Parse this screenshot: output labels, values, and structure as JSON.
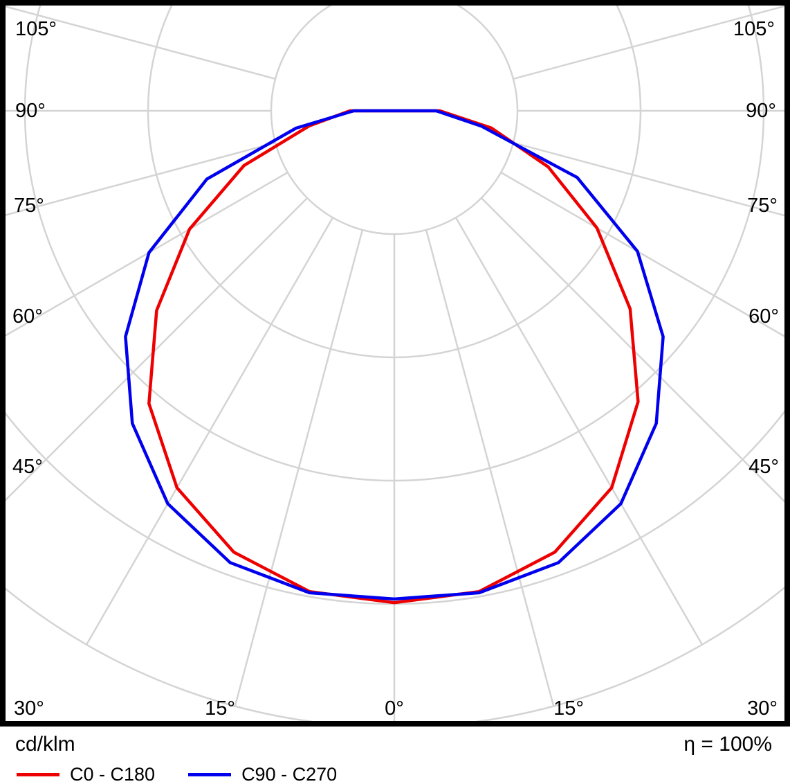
{
  "chart_data": {
    "type": "line",
    "coordinate_system": "polar",
    "description": "Luminaire polar luminous intensity distribution curve",
    "radial_unit": "cd/klm",
    "ring_values": [
      100,
      200,
      300,
      400,
      500
    ],
    "spoke_angles_deg": [
      -105,
      -90,
      -75,
      -60,
      -45,
      -30,
      -15,
      0,
      15,
      30,
      45,
      60,
      75,
      90,
      105
    ],
    "gamma_deg": [
      -90,
      -80,
      -70,
      -60,
      -50,
      -40,
      -30,
      -20,
      -10,
      0,
      10,
      20,
      30,
      40,
      50,
      60,
      70,
      80,
      90
    ],
    "series": [
      {
        "name": "C0 - C180",
        "color": "#ee0000",
        "values": [
          36,
          70,
          130,
          192,
          252,
          310,
          353,
          381,
          396,
          399,
          396,
          381,
          353,
          308,
          250,
          190,
          133,
          80,
          37
        ]
      },
      {
        "name": "C90 - C270",
        "color": "#0000ee",
        "values": [
          33,
          81,
          162,
          230,
          285,
          331,
          368,
          390,
          397,
          396,
          397,
          390,
          368,
          331,
          285,
          228,
          158,
          72,
          34
        ]
      }
    ],
    "angle_labels": {
      "left": [
        "105°",
        "90°",
        "75°",
        "60°",
        "45°",
        "30°"
      ],
      "right": [
        "105°",
        "90°",
        "75°",
        "60°",
        "45°",
        "30°"
      ],
      "bottom": [
        "15°",
        "0°",
        "15°"
      ]
    },
    "grid_color": "#d4d4d4",
    "axis_text_color": "#000000",
    "legend_position": "bottom"
  },
  "legend": {
    "units_label": "cd/klm",
    "efficiency_label": "η = 100%",
    "series": [
      {
        "label": "C0 - C180",
        "color": "#ee0000"
      },
      {
        "label": "C90 - C270",
        "color": "#0000ee"
      }
    ]
  }
}
